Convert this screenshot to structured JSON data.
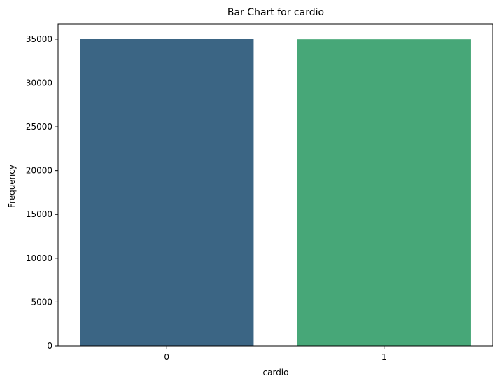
{
  "chart_data": {
    "type": "bar",
    "title": "Bar Chart for cardio",
    "xlabel": "cardio",
    "ylabel": "Frequency",
    "categories": [
      "0",
      "1"
    ],
    "values": [
      35021,
      34979
    ],
    "colors": [
      "#3b6584",
      "#47a778"
    ],
    "ylim": [
      0,
      36750
    ],
    "yticks": [
      0,
      5000,
      10000,
      15000,
      20000,
      25000,
      30000,
      35000
    ],
    "grid": false,
    "legend": "none"
  }
}
